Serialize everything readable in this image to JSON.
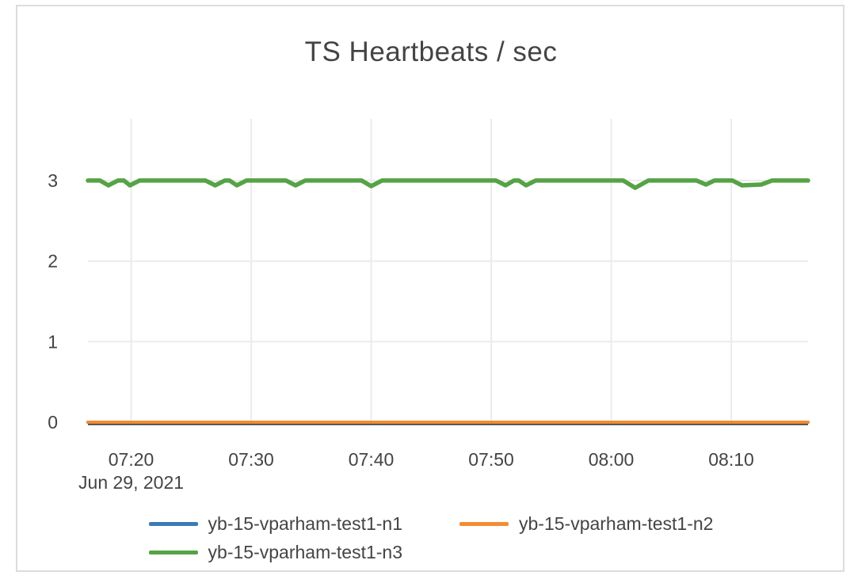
{
  "chart_data": {
    "type": "line",
    "title": "TS Heartbeats / sec",
    "x_axis": {
      "date_label": "Jun 29, 2021",
      "ticks": [
        {
          "t": 440,
          "label": "07:20"
        },
        {
          "t": 450,
          "label": "07:30"
        },
        {
          "t": 460,
          "label": "07:40"
        },
        {
          "t": 470,
          "label": "07:50"
        },
        {
          "t": 480,
          "label": "08:00"
        },
        {
          "t": 490,
          "label": "08:10"
        }
      ],
      "range_minutes_since_midnight": [
        436.4,
        496.4
      ]
    },
    "y_axis": {
      "ticks": [
        0,
        1,
        2,
        3
      ],
      "range": [
        0,
        3.77
      ]
    },
    "grid": true,
    "legend_position": "bottom",
    "series": [
      {
        "name": "yb-15-vparham-test1-n1",
        "color": "#3d7ab7",
        "width": 4,
        "points": [
          [
            436.4,
            0
          ],
          [
            496.4,
            0
          ]
        ]
      },
      {
        "name": "yb-15-vparham-test1-n2",
        "color": "#f28c33",
        "width": 4,
        "points": [
          [
            436.4,
            0
          ],
          [
            496.4,
            0
          ]
        ]
      },
      {
        "name": "yb-15-vparham-test1-n3",
        "color": "#55a345",
        "width": 5.5,
        "points": [
          [
            436.4,
            3
          ],
          [
            437.4,
            3
          ],
          [
            438.1,
            2.94
          ],
          [
            438.9,
            3
          ],
          [
            439.4,
            3
          ],
          [
            439.9,
            2.94
          ],
          [
            440.7,
            3
          ],
          [
            446.2,
            3
          ],
          [
            447.0,
            2.94
          ],
          [
            447.8,
            3
          ],
          [
            448.2,
            3
          ],
          [
            448.8,
            2.94
          ],
          [
            449.6,
            3
          ],
          [
            452.9,
            3
          ],
          [
            453.7,
            2.94
          ],
          [
            454.5,
            3
          ],
          [
            459.2,
            3
          ],
          [
            460.0,
            2.93
          ],
          [
            460.9,
            3
          ],
          [
            470.4,
            3
          ],
          [
            471.2,
            2.94
          ],
          [
            471.9,
            3
          ],
          [
            472.3,
            3
          ],
          [
            472.9,
            2.94
          ],
          [
            473.7,
            3
          ],
          [
            481.0,
            3
          ],
          [
            482.0,
            2.91
          ],
          [
            483.1,
            3
          ],
          [
            487.1,
            3
          ],
          [
            487.9,
            2.95
          ],
          [
            488.6,
            3
          ],
          [
            490.1,
            3
          ],
          [
            490.9,
            2.94
          ],
          [
            492.5,
            2.95
          ],
          [
            493.4,
            3
          ],
          [
            496.4,
            3
          ]
        ]
      }
    ]
  },
  "colors": {
    "text": "#444444",
    "grid": "#ebebeb",
    "axis_line": "#444444",
    "card_border": "#dcdcdc",
    "background": "#ffffff"
  }
}
